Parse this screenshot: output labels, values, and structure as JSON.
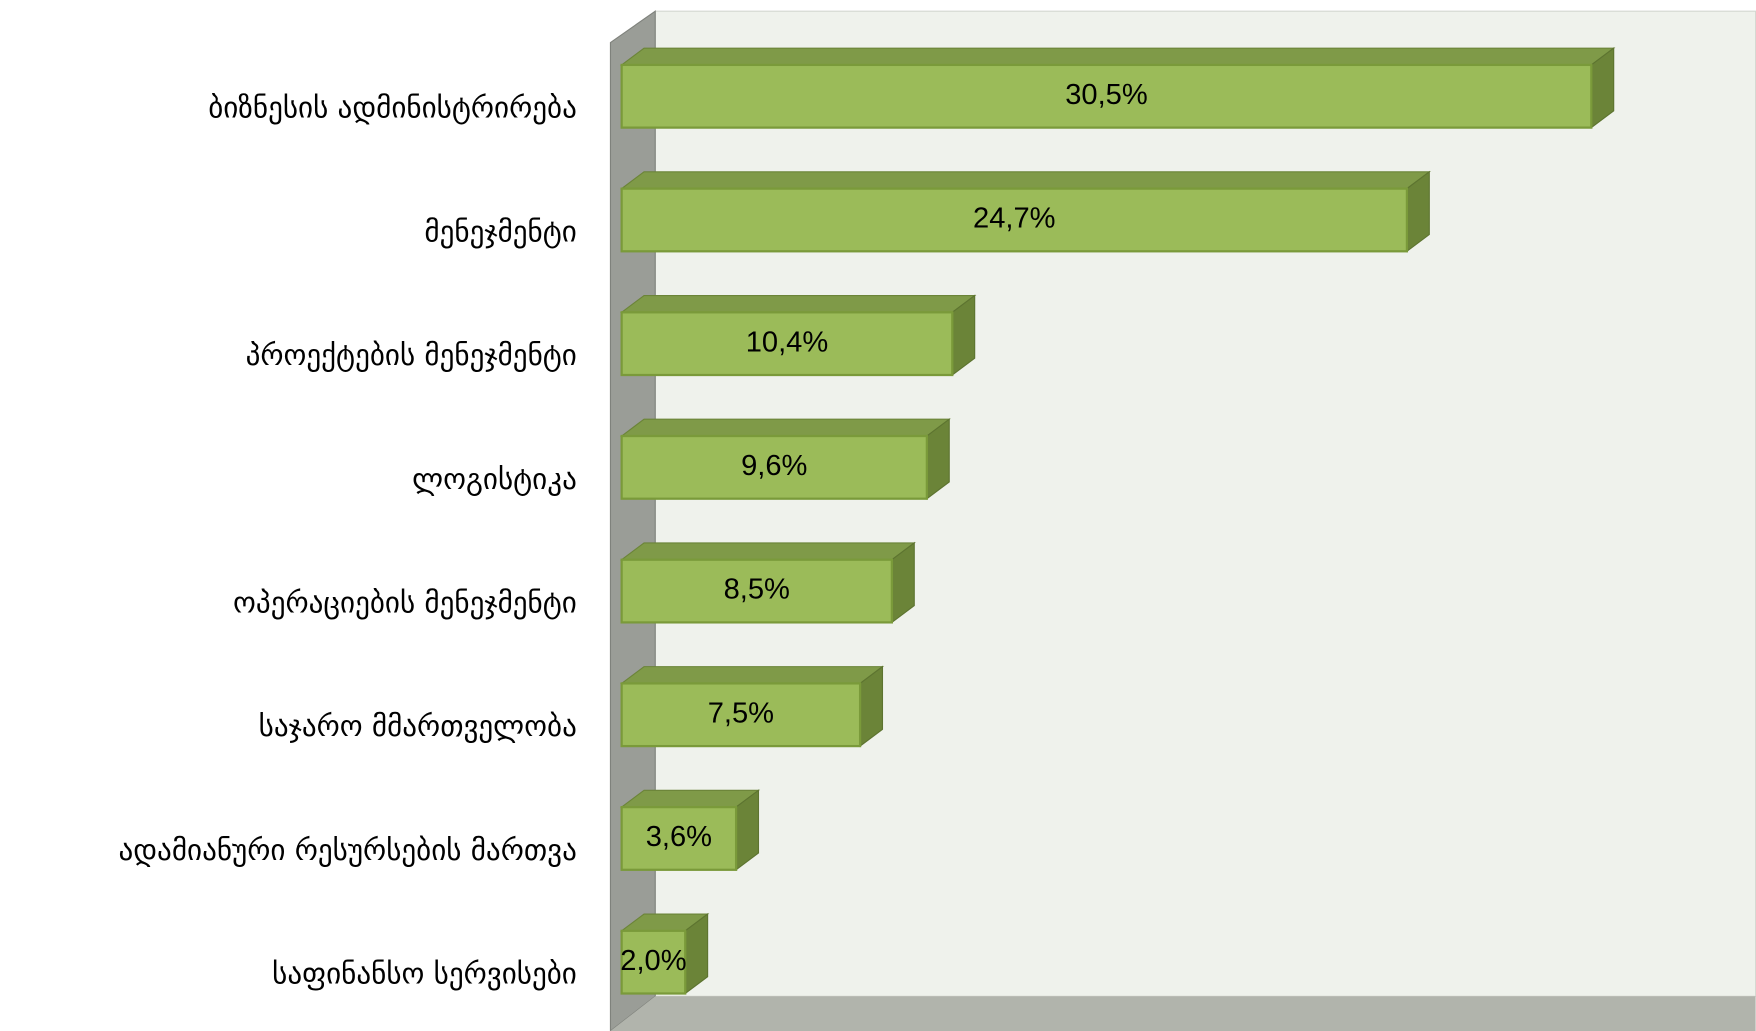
{
  "chart_data": {
    "type": "bar3d-horizontal",
    "categories": [
      "ბიზნესის ადმინისტრირება",
      "მენეჯმენტი",
      "პროექტების მენეჯმენტი",
      "ლოგისტიკა",
      "ოპერაციების მენეჯმენტი",
      "საჯარო მმართველობა",
      "ადამიანური რესურსების მართვა",
      "საფინანსო სერვისები"
    ],
    "values": [
      30.5,
      24.7,
      10.4,
      9.6,
      8.5,
      7.5,
      3.6,
      2.0
    ],
    "value_labels": [
      "30,5%",
      "24,7%",
      "10,4%",
      "9,6%",
      "8,5%",
      "7,5%",
      "3,6%",
      "2,0%"
    ],
    "color": "#9bbb59",
    "xlim": [
      0,
      35
    ]
  }
}
